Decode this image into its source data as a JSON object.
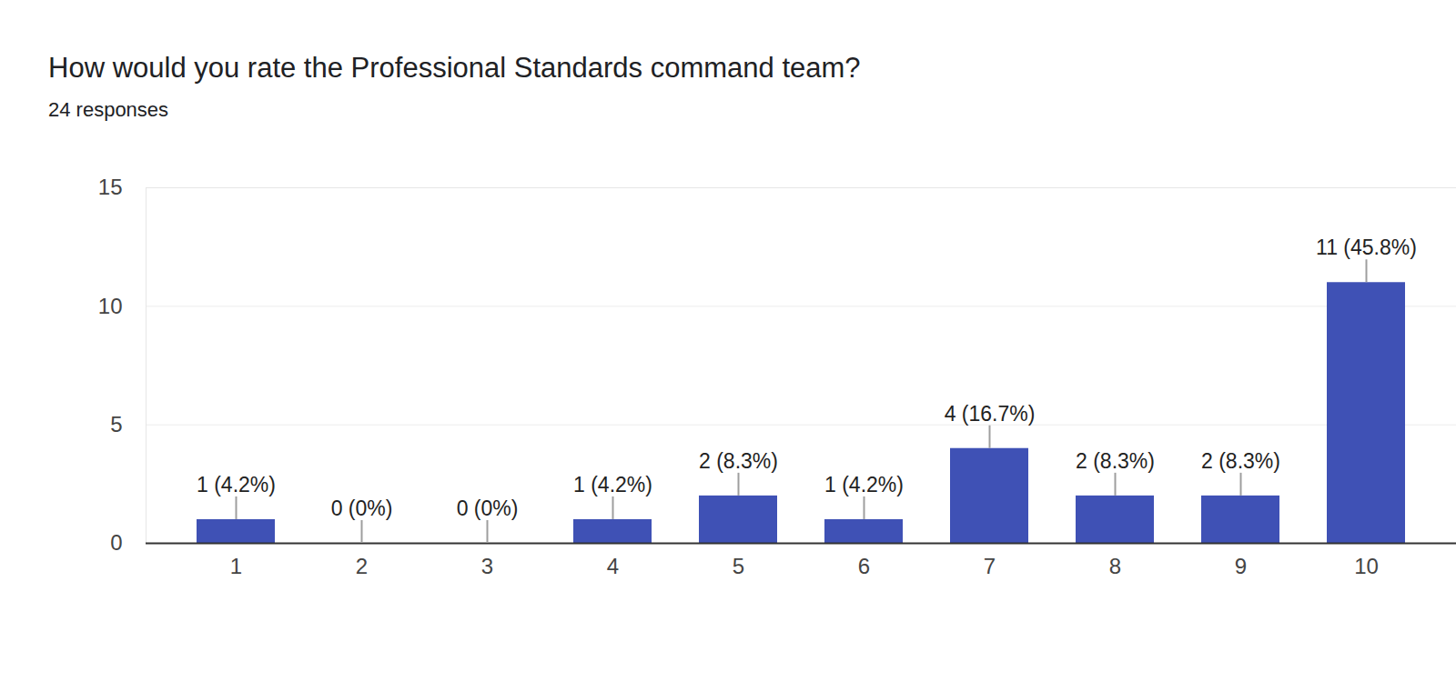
{
  "chart_data": {
    "type": "bar",
    "title": "How would you rate the Professional Standards command team?",
    "subtitle": "24 responses",
    "categories": [
      "1",
      "2",
      "3",
      "4",
      "5",
      "6",
      "7",
      "8",
      "9",
      "10"
    ],
    "values": [
      1,
      0,
      0,
      1,
      2,
      1,
      4,
      2,
      2,
      11
    ],
    "value_labels": [
      "1 (4.2%)",
      "0 (0%)",
      "0 (0%)",
      "1 (4.2%)",
      "2 (8.3%)",
      "1 (4.2%)",
      "4 (16.7%)",
      "2 (8.3%)",
      "2 (8.3%)",
      "11 (45.8%)"
    ],
    "color": "#3f51b5",
    "ylim": [
      0,
      15
    ],
    "yticks": [
      0,
      5,
      10,
      15
    ],
    "grid": true,
    "data_labels": true
  }
}
